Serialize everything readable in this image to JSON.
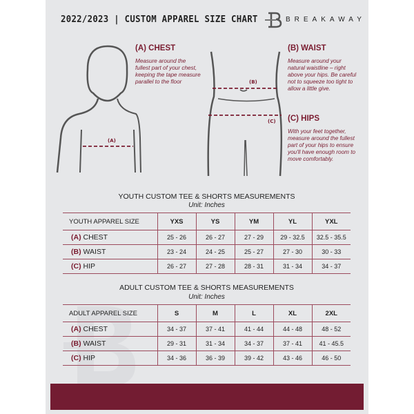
{
  "header": {
    "title": "2022/2023  |  CUSTOM APPAREL SIZE CHART",
    "brand": "BREAKAWAY",
    "logo_letter": "B"
  },
  "measurements": [
    {
      "title": "(A) CHEST",
      "description": "Measure around the fullest part of your chest, keeping the tape measure parallel to the floor",
      "marker": "(A)"
    },
    {
      "title": "(B) WAIST",
      "description": "Measure around your natural waistline – right above your hips. Be careful not to squeeze too tight to allow a little give.",
      "marker": "(B)"
    },
    {
      "title": "(C) HIPS",
      "description": "With your feet together, measure around the fullest part of your hips to ensure you'll have enough room to move comfortably.",
      "marker": "(C)"
    }
  ],
  "youth": {
    "title": "YOUTH CUSTOM TEE & SHORTS MEASUREMENTS",
    "unit": "Unit: Inches",
    "header": "YOUTH APPAREL SIZE",
    "sizes": [
      "YXS",
      "YS",
      "YM",
      "YL",
      "YXL"
    ],
    "rows": [
      {
        "code": "(A)",
        "label": "CHEST",
        "values": [
          "25 - 26",
          "26 - 27",
          "27 - 29",
          "29 - 32.5",
          "32.5 - 35.5"
        ]
      },
      {
        "code": "(B)",
        "label": "WAIST",
        "values": [
          "23 - 24",
          "24 - 25",
          "25 - 27",
          "27 - 30",
          "30 - 33"
        ]
      },
      {
        "code": "(C)",
        "label": "HIP",
        "values": [
          "26 - 27",
          "27 - 28",
          "28 - 31",
          "31 - 34",
          "34 - 37"
        ]
      }
    ]
  },
  "adult": {
    "title": "ADULT CUSTOM TEE & SHORTS MEASUREMENTS",
    "unit": "Unit: Inches",
    "header": "ADULT APPAREL SIZE",
    "sizes": [
      "S",
      "M",
      "L",
      "XL",
      "2XL"
    ],
    "rows": [
      {
        "code": "(A)",
        "label": "CHEST",
        "values": [
          "34 - 37",
          "37 - 41",
          "41 - 44",
          "44 - 48",
          "48 - 52"
        ]
      },
      {
        "code": "(B)",
        "label": "WAIST",
        "values": [
          "29 - 31",
          "31 - 34",
          "34 - 37",
          "37 - 41",
          "41 - 45.5"
        ]
      },
      {
        "code": "(C)",
        "label": "HIP",
        "values": [
          "34 - 36",
          "36 - 39",
          "39 - 42",
          "43 - 46",
          "46 - 50"
        ]
      }
    ]
  },
  "colors": {
    "accent": "#731c32",
    "background": "#e6e7e9",
    "text": "#222222"
  }
}
